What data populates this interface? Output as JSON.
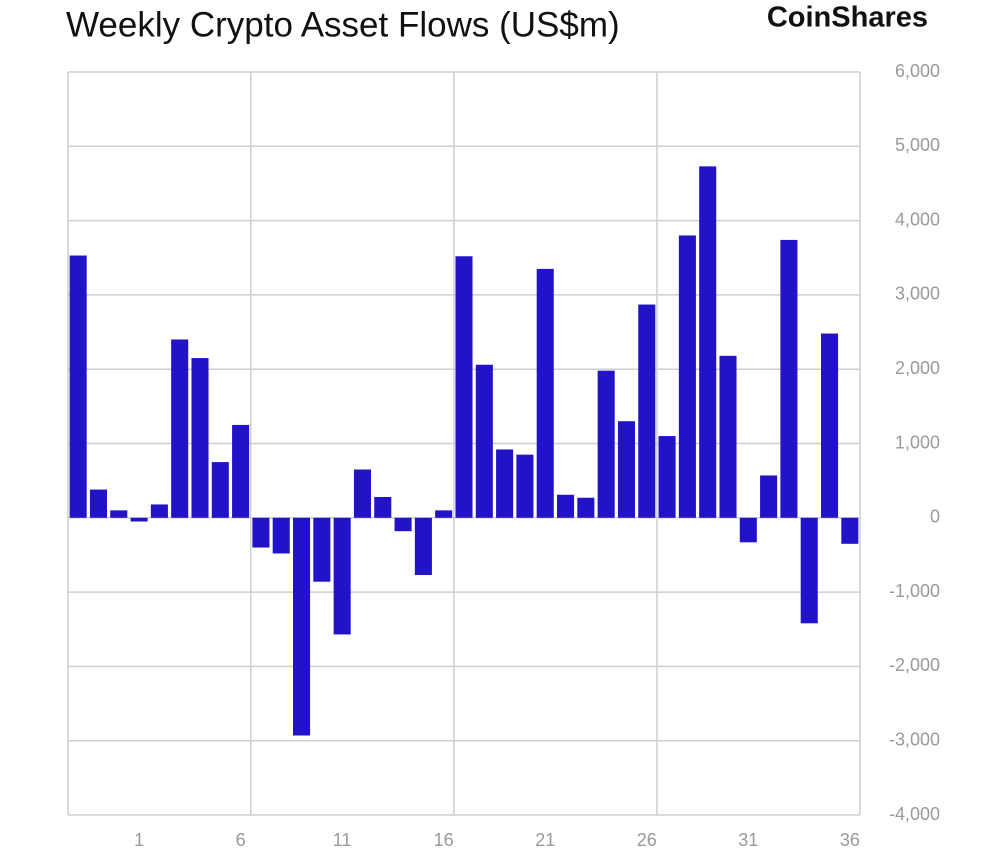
{
  "chart_data": {
    "type": "bar",
    "title": "Weekly Crypto Asset Flows (US$m)",
    "brand": "CoinShares",
    "categories": [
      null,
      null,
      null,
      "1",
      null,
      null,
      null,
      null,
      "6",
      null,
      null,
      null,
      null,
      "11",
      null,
      null,
      null,
      null,
      "16",
      null,
      null,
      null,
      null,
      "21",
      null,
      null,
      null,
      null,
      "26",
      null,
      null,
      null,
      null,
      "31",
      null,
      null,
      null,
      null,
      "36"
    ],
    "values": [
      3530,
      380,
      100,
      -50,
      180,
      2400,
      2150,
      750,
      1250,
      -400,
      -480,
      -2930,
      -860,
      -1570,
      650,
      280,
      -180,
      -770,
      100,
      3520,
      2060,
      920,
      850,
      3350,
      310,
      270,
      1980,
      1300,
      2870,
      1100,
      3800,
      4730,
      2180,
      -330,
      570,
      3740,
      -1420,
      2480,
      -350
    ],
    "color": "#2213c9",
    "ylim": [
      -4000,
      6000
    ],
    "yticks": [
      {
        "value": -4000,
        "label": "-4,000"
      },
      {
        "value": -3000,
        "label": "-3,000"
      },
      {
        "value": -2000,
        "label": "-2,000"
      },
      {
        "value": -1000,
        "label": "-1,000"
      },
      0,
      {
        "value": 1000,
        "label": "1,000"
      },
      {
        "value": 2000,
        "label": "2,000"
      },
      {
        "value": 3000,
        "label": "3,000"
      },
      {
        "value": 4000,
        "label": "4,000"
      },
      {
        "value": 5000,
        "label": "5,000"
      },
      {
        "value": 6000,
        "label": "6,000"
      }
    ],
    "grid": true
  }
}
